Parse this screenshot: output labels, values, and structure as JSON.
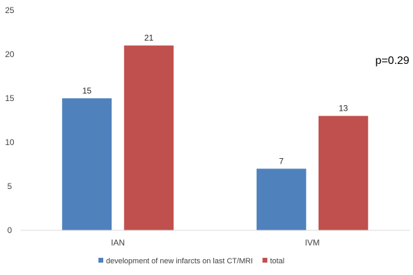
{
  "chart_data": {
    "type": "bar",
    "categories": [
      "IAN",
      "IVM"
    ],
    "series": [
      {
        "name": "development of new infarcts on last CT/MRI",
        "values": [
          15,
          7
        ],
        "color": "#4f81bd"
      },
      {
        "name": "total",
        "values": [
          21,
          13
        ],
        "color": "#c0504d"
      }
    ],
    "ylim": [
      0,
      25
    ],
    "yticks": [
      0,
      5,
      10,
      15,
      20,
      25
    ],
    "grid": false,
    "legend_position": "bottom",
    "annotation": "p=0.29"
  }
}
